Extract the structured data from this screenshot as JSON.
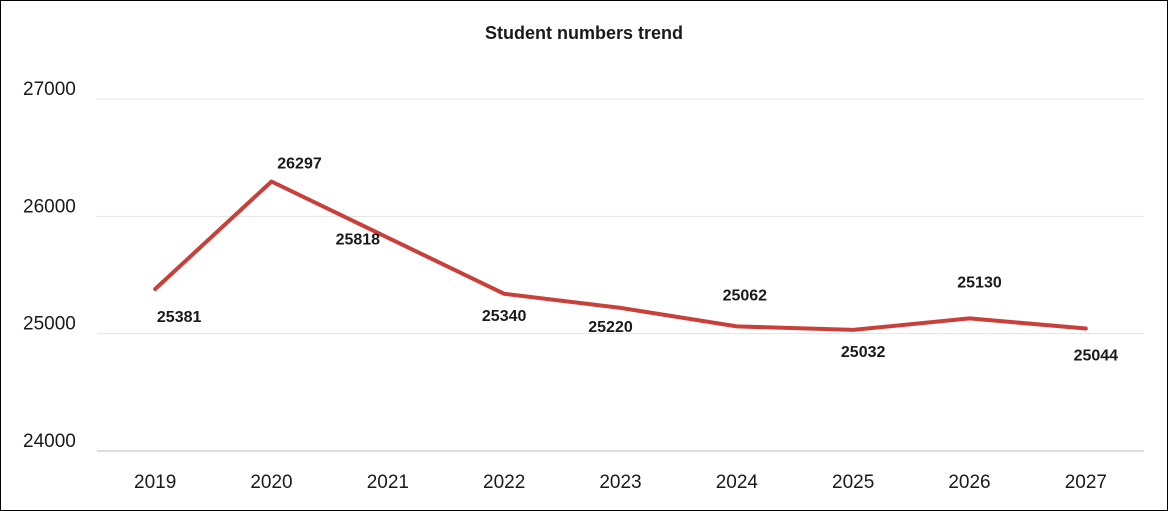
{
  "chart_data": {
    "type": "line",
    "title": "Student numbers trend",
    "xlabel": "",
    "ylabel": "",
    "categories": [
      "2019",
      "2020",
      "2021",
      "2022",
      "2023",
      "2024",
      "2025",
      "2026",
      "2027"
    ],
    "series": [
      {
        "values": [
          25381,
          26297,
          25818,
          25340,
          25220,
          25062,
          25032,
          25130,
          25044
        ],
        "color": "#c9403a"
      }
    ],
    "yticks": [
      "24000",
      "25000",
      "26000",
      "27000"
    ],
    "ylim": [
      24000,
      27000
    ],
    "grid": true,
    "legend": "none"
  }
}
